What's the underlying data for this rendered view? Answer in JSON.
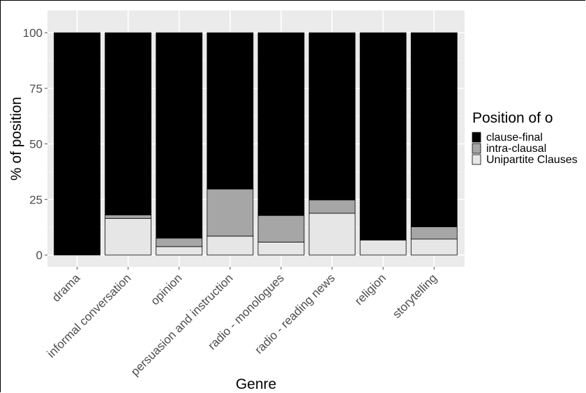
{
  "chart_data": {
    "type": "bar",
    "stacked": true,
    "xlabel": "Genre",
    "ylabel": "% of position",
    "ylim": [
      0,
      100
    ],
    "yticks": [
      0,
      25,
      50,
      75,
      100
    ],
    "grid": true,
    "legend_position": "right",
    "legend_title": "Position of o",
    "categories": [
      "drama",
      "informal conversation",
      "opinion",
      "persuasion and instruction",
      "radio - monologues",
      "radio - reading news",
      "religion",
      "storytelling"
    ],
    "series": [
      {
        "name": "Unipartite Clauses",
        "color": "#e6e6e6",
        "values": [
          0,
          16.5,
          3.8,
          8.5,
          5.8,
          18.8,
          6.7,
          7.2
        ]
      },
      {
        "name": "intra-clausal",
        "color": "#a6a6a6",
        "values": [
          0,
          1.5,
          3.8,
          21.2,
          12.0,
          6.0,
          0,
          5.5
        ]
      },
      {
        "name": "clause-final",
        "color": "#000000",
        "values": [
          100,
          82.0,
          92.4,
          70.3,
          82.2,
          75.2,
          93.3,
          87.3
        ]
      }
    ],
    "legend_entries": [
      "clause-final",
      "intra-clausal",
      "Unipartite Clauses"
    ]
  }
}
